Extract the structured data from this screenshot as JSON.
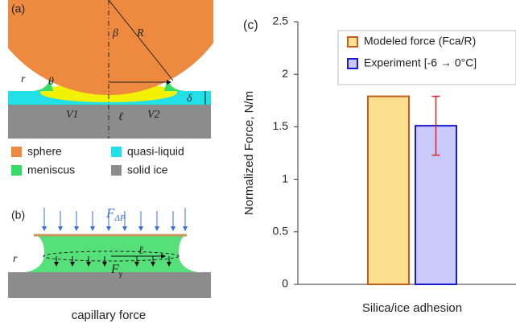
{
  "panel_a": {
    "label": "(a)",
    "symbols": {
      "beta": "β",
      "R": "R",
      "r": "r",
      "theta": "θ",
      "delta": "δ",
      "V1": "V1",
      "V2": "V2",
      "ell": "ℓ"
    },
    "legend": [
      "sphere",
      "meniscus",
      "quasi-liquid",
      "solid ice"
    ]
  },
  "panel_b": {
    "label": "(b)",
    "pressure_force": "F",
    "pressure_sub": "ΔP",
    "ell": "ℓ",
    "tension_force": "F",
    "tension_sub": "γ",
    "r": "r",
    "caption": "capillary force"
  },
  "chart_data": {
    "type": "bar",
    "panel_label": "(c)",
    "ylabel": "Normalized Force, N/m",
    "categories": [
      "Silica/ice adhesion"
    ],
    "ylim": [
      0,
      2.5
    ],
    "yticks": [
      0,
      0.5,
      1,
      1.5,
      2,
      2.5
    ],
    "series": [
      {
        "name": "Modeled force (Fca/R)",
        "color": "#fde08f",
        "edge": "#c0601a",
        "values": [
          1.79
        ]
      },
      {
        "name": "Experiment [-6 → 0°C]",
        "color": "#c9c9fa",
        "edge": "#1a1ad0",
        "values": [
          1.51
        ],
        "errors": [
          0.28
        ],
        "error_color": "#e02020"
      }
    ]
  }
}
